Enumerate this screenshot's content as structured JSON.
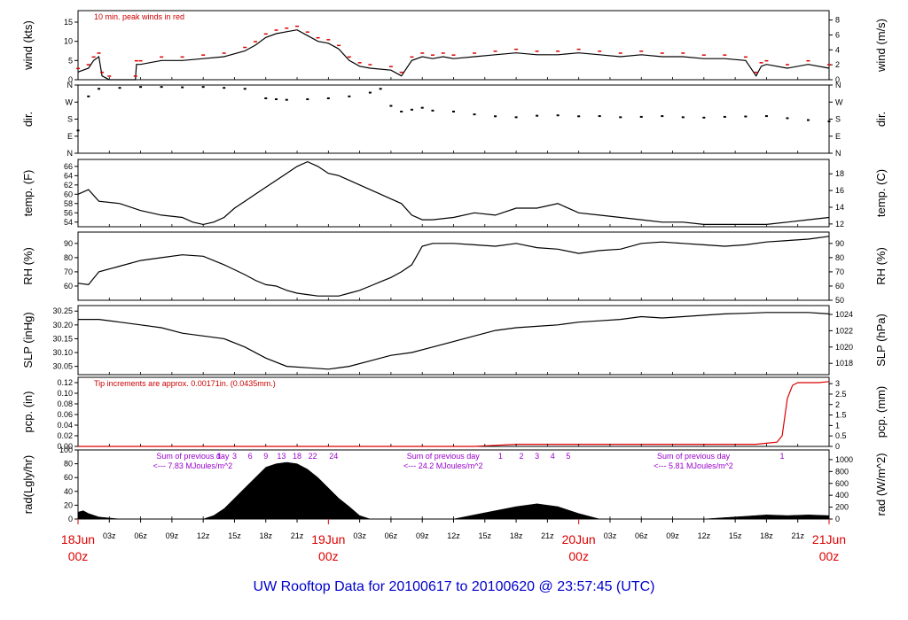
{
  "title": "UW Rooftop Data for 20100617  to  20100620 @ 23:57:45  (UTC)",
  "colors": {
    "trace": "#000000",
    "peak": "#dd0000",
    "precip": "#dd0000",
    "radsum": "#9900cc",
    "title": "#0000cc"
  },
  "x_axis": {
    "hours_span": 72,
    "major_labels": [
      {
        "hour": 0,
        "line1": "18Jun",
        "line2": "00z"
      },
      {
        "hour": 24,
        "line1": "19Jun",
        "line2": "00z"
      },
      {
        "hour": 48,
        "line1": "20Jun",
        "line2": "00z"
      },
      {
        "hour": 72,
        "line1": "21Jun",
        "line2": "00z"
      }
    ],
    "minor_labels": [
      {
        "hour": 3,
        "text": "03z"
      },
      {
        "hour": 6,
        "text": "06z"
      },
      {
        "hour": 9,
        "text": "09z"
      },
      {
        "hour": 12,
        "text": "12z"
      },
      {
        "hour": 15,
        "text": "15z"
      },
      {
        "hour": 18,
        "text": "18z"
      },
      {
        "hour": 21,
        "text": "21z"
      },
      {
        "hour": 27,
        "text": "03z"
      },
      {
        "hour": 30,
        "text": "06z"
      },
      {
        "hour": 33,
        "text": "09z"
      },
      {
        "hour": 36,
        "text": "12z"
      },
      {
        "hour": 39,
        "text": "15z"
      },
      {
        "hour": 42,
        "text": "18z"
      },
      {
        "hour": 45,
        "text": "21z"
      },
      {
        "hour": 51,
        "text": "03z"
      },
      {
        "hour": 54,
        "text": "06z"
      },
      {
        "hour": 57,
        "text": "09z"
      },
      {
        "hour": 60,
        "text": "12z"
      },
      {
        "hour": 63,
        "text": "15z"
      },
      {
        "hour": 66,
        "text": "18z"
      },
      {
        "hour": 69,
        "text": "21z"
      }
    ]
  },
  "chart_data": [
    {
      "type": "line",
      "panel": "wind",
      "ylabel": "wind (kts)",
      "ylabel_right": "wind (m/s)",
      "ylim": [
        0,
        18
      ],
      "ticks_left": [
        0,
        5,
        10,
        15
      ],
      "ticks_right": [
        {
          "label": "0",
          "at": 0
        },
        {
          "label": "2",
          "at": 3.89
        },
        {
          "label": "4",
          "at": 7.78
        },
        {
          "label": "6",
          "at": 11.66
        },
        {
          "label": "8",
          "at": 15.55
        }
      ],
      "annotation": "10 min. peak winds in red",
      "x_hours": [
        0,
        1,
        1.5,
        2,
        2.3,
        3,
        5.5,
        5.6,
        6,
        8,
        10,
        12,
        14,
        16,
        17,
        18,
        19,
        20,
        21,
        22,
        23,
        24,
        25,
        26,
        27,
        28,
        30,
        31,
        32,
        33,
        34,
        35,
        36,
        38,
        40,
        42,
        44,
        46,
        48,
        50,
        52,
        54,
        56,
        58,
        60,
        62,
        64,
        65,
        65.5,
        66,
        68,
        70,
        72
      ],
      "y": [
        2,
        3,
        5,
        6,
        1,
        0,
        0,
        4,
        4,
        5,
        5,
        5.5,
        6,
        7.5,
        9,
        11,
        12,
        12.5,
        13,
        11.5,
        10,
        9.5,
        8,
        5,
        3.5,
        3,
        2.5,
        1,
        5,
        6,
        5.5,
        6,
        5.5,
        6,
        6.5,
        7,
        6.5,
        6.5,
        7,
        6.5,
        6,
        6.5,
        6,
        6,
        5.5,
        5.5,
        5,
        1,
        3.5,
        4,
        3,
        4,
        3
      ]
    },
    {
      "type": "scatter",
      "panel": "direction",
      "ylabel": "dir.",
      "ylim": [
        0,
        360
      ],
      "tick_labels": [
        {
          "label": "N",
          "at": 0
        },
        {
          "label": "E",
          "at": 90
        },
        {
          "label": "S",
          "at": 180
        },
        {
          "label": "W",
          "at": 270
        },
        {
          "label": "N",
          "at": 360
        }
      ],
      "x_hours": [
        0,
        1,
        2,
        4,
        6,
        8,
        10,
        12,
        14,
        16,
        18,
        19,
        20,
        22,
        24,
        26,
        28,
        29,
        30,
        31,
        32,
        33,
        34,
        36,
        38,
        40,
        42,
        44,
        46,
        48,
        50,
        52,
        54,
        56,
        58,
        60,
        62,
        64,
        66,
        68,
        70,
        72
      ],
      "y": [
        120,
        300,
        340,
        345,
        350,
        350,
        348,
        350,
        345,
        340,
        290,
        285,
        282,
        285,
        290,
        300,
        320,
        340,
        250,
        220,
        230,
        240,
        225,
        220,
        205,
        195,
        190,
        198,
        200,
        195,
        196,
        190,
        192,
        196,
        190,
        188,
        192,
        194,
        196,
        185,
        175,
        168
      ]
    },
    {
      "type": "line",
      "panel": "temperature",
      "ylabel": "temp. (F)",
      "ylabel_right": "temp. (C)",
      "ylim": [
        53,
        67.5
      ],
      "ticks_left": [
        54,
        56,
        58,
        60,
        62,
        64,
        66
      ],
      "ticks_right": [
        {
          "label": "12",
          "at": 53.6
        },
        {
          "label": "14",
          "at": 57.2
        },
        {
          "label": "16",
          "at": 60.8
        },
        {
          "label": "18",
          "at": 64.4
        }
      ],
      "x_hours": [
        0,
        1,
        2,
        4,
        6,
        8,
        10,
        11,
        12,
        13,
        14,
        15,
        16,
        17,
        18,
        19,
        20,
        21,
        22,
        23,
        24,
        25,
        26,
        27,
        28,
        29,
        30,
        31,
        32,
        33,
        34,
        36,
        38,
        40,
        42,
        44,
        46,
        48,
        50,
        52,
        54,
        56,
        58,
        60,
        62,
        64,
        66,
        68,
        70,
        72
      ],
      "y": [
        60,
        61,
        58.5,
        58,
        56.5,
        55.5,
        55,
        54,
        53.5,
        54,
        55,
        57,
        58.5,
        60,
        61.5,
        63,
        64.5,
        66,
        67,
        66,
        64.5,
        64,
        63,
        62,
        61,
        60,
        59,
        58,
        55.5,
        54.5,
        54.5,
        55,
        56,
        55.5,
        57,
        57,
        58,
        56,
        55.5,
        55,
        54.5,
        54,
        54,
        53.5,
        53.5,
        53.5,
        53.5,
        54,
        54.5,
        55
      ]
    },
    {
      "type": "line",
      "panel": "relative_humidity",
      "ylabel": "RH (%)",
      "ylabel_right": "RH (%)",
      "ylim": [
        50,
        98
      ],
      "ticks_left": [
        60,
        70,
        80,
        90
      ],
      "ticks_right": [
        {
          "label": "50",
          "at": 50
        },
        {
          "label": "60",
          "at": 60
        },
        {
          "label": "70",
          "at": 70
        },
        {
          "label": "80",
          "at": 80
        },
        {
          "label": "90",
          "at": 90
        }
      ],
      "x_hours": [
        0,
        1,
        2,
        4,
        6,
        8,
        10,
        12,
        14,
        16,
        17,
        18,
        19,
        20,
        21,
        22,
        23,
        24,
        25,
        26,
        27,
        28,
        29,
        30,
        31,
        32,
        33,
        34,
        36,
        38,
        40,
        42,
        44,
        46,
        48,
        50,
        52,
        54,
        56,
        58,
        60,
        62,
        64,
        66,
        68,
        70,
        72
      ],
      "y": [
        62,
        61,
        70,
        74,
        78,
        80,
        82,
        81,
        75,
        68,
        64,
        61,
        60,
        57,
        55,
        54,
        53,
        53,
        53,
        55,
        57,
        60,
        63,
        66,
        70,
        75,
        88,
        90,
        90,
        89,
        88,
        90,
        87,
        86,
        83,
        85,
        86,
        90,
        91,
        90,
        89,
        88,
        89,
        91,
        92,
        93,
        95
      ]
    },
    {
      "type": "line",
      "panel": "sea_level_pressure",
      "ylabel": "SLP (inHg)",
      "ylabel_right": "SLP (hPa)",
      "ylim": [
        30.02,
        30.27
      ],
      "ticks_left": [
        30.05,
        30.1,
        30.15,
        30.2,
        30.25
      ],
      "ticks_right": [
        {
          "label": "1018",
          "at": 30.061
        },
        {
          "label": "1020",
          "at": 30.12
        },
        {
          "label": "1022",
          "at": 30.179
        },
        {
          "label": "1024",
          "at": 30.238
        }
      ],
      "x_hours": [
        0,
        2,
        4,
        6,
        8,
        10,
        12,
        14,
        16,
        18,
        20,
        22,
        24,
        26,
        28,
        30,
        32,
        34,
        36,
        38,
        40,
        42,
        44,
        46,
        48,
        50,
        52,
        54,
        56,
        58,
        60,
        62,
        64,
        66,
        68,
        70,
        72
      ],
      "y": [
        30.22,
        30.22,
        30.21,
        30.2,
        30.19,
        30.17,
        30.16,
        30.15,
        30.12,
        30.08,
        30.05,
        30.045,
        30.04,
        30.05,
        30.07,
        30.09,
        30.1,
        30.12,
        30.14,
        30.16,
        30.18,
        30.19,
        30.195,
        30.2,
        30.21,
        30.215,
        30.22,
        30.23,
        30.225,
        30.23,
        30.235,
        30.24,
        30.242,
        30.245,
        30.245,
        30.245,
        30.24
      ]
    },
    {
      "type": "line",
      "panel": "precipitation",
      "ylabel": "pcp. (in)",
      "ylabel_right": "pcp. (mm)",
      "ylim": [
        0,
        0.13
      ],
      "ticks_left": [
        0.0,
        0.02,
        0.04,
        0.06,
        0.08,
        0.1,
        0.12
      ],
      "ticks_right": [
        {
          "label": "0",
          "at": 0
        },
        {
          "label": "0.5",
          "at": 0.0197
        },
        {
          "label": "1",
          "at": 0.0394
        },
        {
          "label": "1.5",
          "at": 0.0591
        },
        {
          "label": "2",
          "at": 0.0787
        },
        {
          "label": "2.5",
          "at": 0.0984
        },
        {
          "label": "3",
          "at": 0.1181
        }
      ],
      "annotation": "Tip increments are approx. 0.00171in. (0.0435mm.)",
      "x_hours": [
        0,
        38,
        40,
        42,
        44,
        46,
        48,
        50,
        52,
        54,
        56,
        58,
        60,
        62,
        64,
        65,
        66,
        67,
        67.5,
        68,
        68.5,
        69,
        70,
        71,
        72
      ],
      "y": [
        0,
        0,
        0.002,
        0.004,
        0.004,
        0.004,
        0.004,
        0.004,
        0.004,
        0.004,
        0.004,
        0.004,
        0.004,
        0.004,
        0.004,
        0.004,
        0.006,
        0.008,
        0.02,
        0.09,
        0.115,
        0.12,
        0.12,
        0.12,
        0.122
      ]
    },
    {
      "type": "area",
      "panel": "solar_radiation",
      "ylabel": "rad(Lgly/hr)",
      "ylabel_right": "rad (W/m^2)",
      "ylim": [
        0,
        100
      ],
      "ticks_left": [
        0,
        20,
        40,
        60,
        80,
        100
      ],
      "ticks_right": [
        {
          "label": "0",
          "at": 0
        },
        {
          "label": "200",
          "at": 17.2
        },
        {
          "label": "400",
          "at": 34.4
        },
        {
          "label": "600",
          "at": 51.6
        },
        {
          "label": "800",
          "at": 68.8
        },
        {
          "label": "1000",
          "at": 86.0
        }
      ],
      "x_hours": [
        0,
        0.5,
        1,
        2,
        4,
        12,
        13,
        14,
        15,
        16,
        17,
        18,
        19,
        20,
        21,
        22,
        23,
        24,
        25,
        26,
        27,
        28,
        36,
        38,
        40,
        42,
        44,
        46,
        48,
        50,
        60,
        62,
        64,
        66,
        68,
        70,
        72
      ],
      "y": [
        10,
        12,
        8,
        3,
        0,
        0,
        5,
        15,
        30,
        45,
        60,
        75,
        80,
        82,
        80,
        72,
        60,
        45,
        30,
        18,
        5,
        0,
        0,
        6,
        12,
        18,
        22,
        18,
        8,
        0,
        0,
        2,
        4,
        6,
        5,
        6,
        5
      ],
      "daily_sums": [
        {
          "label": "Sum of previous day",
          "value": "<--- 7.83 MJoules/m^2"
        },
        {
          "label": "Sum of previous day",
          "value": "<--- 24.2 MJoules/m^2"
        },
        {
          "label": "Sum of previous day",
          "value": "<--- 5.81 MJoules/m^2"
        }
      ],
      "hour_markers": [
        {
          "hour": 13.5,
          "text": "1"
        },
        {
          "hour": 15,
          "text": "3"
        },
        {
          "hour": 16.5,
          "text": "6"
        },
        {
          "hour": 18,
          "text": "9"
        },
        {
          "hour": 19.5,
          "text": "13"
        },
        {
          "hour": 21,
          "text": "18"
        },
        {
          "hour": 22.5,
          "text": "22"
        },
        {
          "hour": 24.5,
          "text": "24"
        },
        {
          "hour": 40.5,
          "text": "1"
        },
        {
          "hour": 42.5,
          "text": "2"
        },
        {
          "hour": 44,
          "text": "3"
        },
        {
          "hour": 45.5,
          "text": "4"
        },
        {
          "hour": 47,
          "text": "5"
        },
        {
          "hour": 67.5,
          "text": "1"
        }
      ]
    }
  ]
}
